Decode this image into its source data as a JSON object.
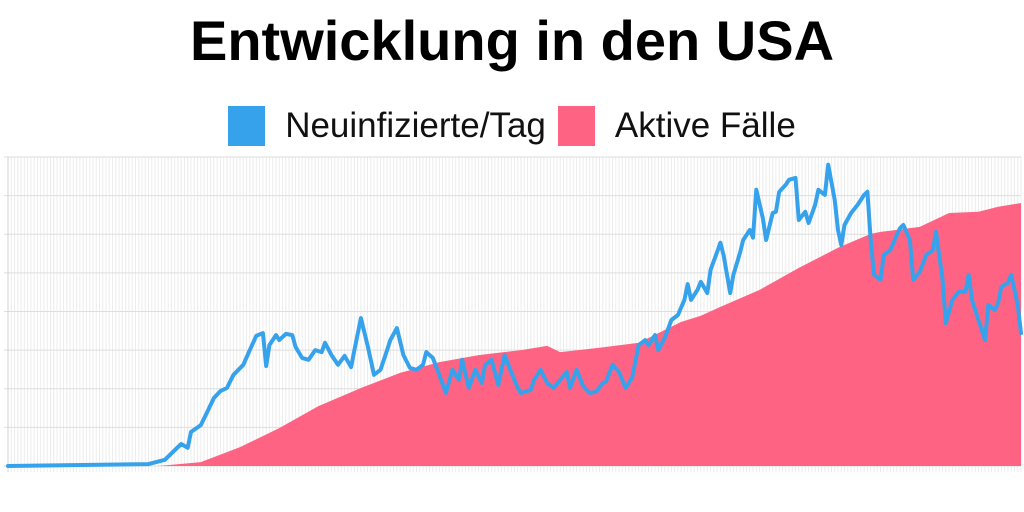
{
  "chart_data": {
    "type": "line",
    "title": "Entwicklung in den USA",
    "xlabel": "",
    "ylabel": "",
    "xlim": [
      0,
      310
    ],
    "ylim": [
      0,
      80
    ],
    "grid": true,
    "legend_position": "top",
    "series": [
      {
        "name": "Neuinfizierte/Tag",
        "kind": "line",
        "color": "#36A2EB",
        "x": [
          0,
          43,
          48,
          51,
          53,
          55,
          56,
          59,
          61,
          63,
          65,
          67,
          69,
          72,
          74,
          76,
          78,
          79,
          80,
          82,
          83,
          85,
          87,
          88,
          90,
          92,
          94,
          96,
          97,
          99,
          101,
          103,
          105,
          106,
          108,
          110,
          112,
          114,
          116,
          117,
          119,
          121,
          123,
          125,
          127,
          128,
          130,
          132,
          134,
          136,
          138,
          139,
          141,
          143,
          145,
          146,
          148,
          150,
          152,
          154,
          156,
          157,
          160,
          161,
          163,
          165,
          167,
          169,
          171,
          172,
          174,
          176,
          178,
          180,
          182,
          183,
          185,
          187,
          189,
          191,
          193,
          195,
          196,
          198,
          199,
          201,
          203,
          205,
          207,
          208,
          209,
          211,
          212,
          214,
          215,
          217,
          218,
          219,
          221,
          222,
          224,
          225,
          227,
          228,
          229,
          231,
          232,
          234,
          235,
          236,
          238,
          239,
          241,
          242,
          244,
          245,
          247,
          248,
          250,
          251,
          253,
          254,
          255,
          256,
          258,
          260,
          262,
          263,
          264,
          265,
          267,
          268,
          270,
          272,
          273,
          274,
          276,
          277,
          279,
          281,
          283,
          284,
          286,
          287,
          289,
          291,
          293,
          294,
          295,
          297,
          299,
          300,
          302,
          303,
          304,
          306,
          307,
          309,
          310
        ],
        "values": [
          0,
          0.5,
          1.6,
          4.1,
          5.7,
          4.7,
          8.8,
          10.6,
          14.0,
          17.6,
          19.4,
          20.2,
          23.6,
          26.2,
          30.0,
          33.7,
          34.4,
          25.9,
          31.3,
          33.9,
          32.6,
          34.2,
          33.9,
          30.8,
          28.0,
          27.5,
          30.0,
          29.5,
          31.9,
          28.7,
          26.2,
          28.5,
          25.6,
          30.0,
          38.3,
          31.3,
          23.6,
          24.9,
          30.0,
          32.6,
          35.7,
          28.7,
          25.4,
          24.9,
          26.2,
          29.5,
          28.0,
          23.6,
          18.9,
          24.9,
          22.3,
          27.5,
          20.2,
          24.9,
          21.5,
          26.2,
          27.5,
          21.0,
          28.7,
          24.3,
          20.2,
          18.9,
          19.7,
          22.3,
          24.9,
          21.5,
          20.2,
          22.3,
          24.3,
          20.2,
          24.9,
          20.7,
          18.9,
          19.2,
          21.5,
          21.8,
          26.2,
          24.3,
          20.2,
          22.8,
          31.3,
          32.6,
          31.3,
          33.9,
          30.0,
          33.2,
          37.8,
          39.1,
          43.0,
          47.1,
          43.0,
          45.6,
          47.7,
          44.8,
          50.8,
          55.4,
          57.8,
          54.6,
          44.8,
          49.5,
          55.2,
          58.5,
          61.1,
          59.1,
          71.5,
          64.2,
          58.5,
          65.5,
          65.8,
          71.0,
          72.8,
          74.1,
          74.6,
          63.7,
          65.8,
          62.9,
          67.6,
          71.5,
          70.2,
          78.0,
          68.9,
          61.1,
          57.2,
          62.4,
          65.5,
          67.6,
          70.2,
          71.0,
          58.5,
          49.5,
          48.2,
          54.6,
          55.9,
          59.8,
          61.6,
          62.4,
          58.5,
          48.2,
          50.2,
          54.6,
          55.9,
          60.6,
          48.2,
          37.0,
          43.0,
          45.1,
          45.1,
          49.5,
          43.0,
          37.8,
          32.6,
          41.7,
          40.4,
          42.2,
          46.4,
          47.4,
          49.5,
          41.7,
          34.4
        ]
      },
      {
        "name": "Aktive Fälle",
        "kind": "area",
        "color": "#FF6384",
        "x": [
          0,
          46,
          59,
          71,
          83,
          95,
          108,
          120,
          132,
          144,
          157,
          165,
          169,
          181,
          193,
          206,
          212,
          218,
          230,
          242,
          254,
          264,
          267,
          279,
          288,
          297,
          303,
          310
        ],
        "values": [
          0,
          0,
          1.0,
          4.9,
          9.8,
          15.5,
          20.2,
          24.1,
          26.9,
          28.7,
          30.0,
          31.1,
          29.5,
          30.6,
          31.9,
          37.3,
          38.9,
          41.2,
          45.6,
          51.3,
          56.5,
          60.1,
          60.6,
          61.9,
          65.5,
          65.8,
          67.1,
          68.1
        ]
      }
    ]
  }
}
